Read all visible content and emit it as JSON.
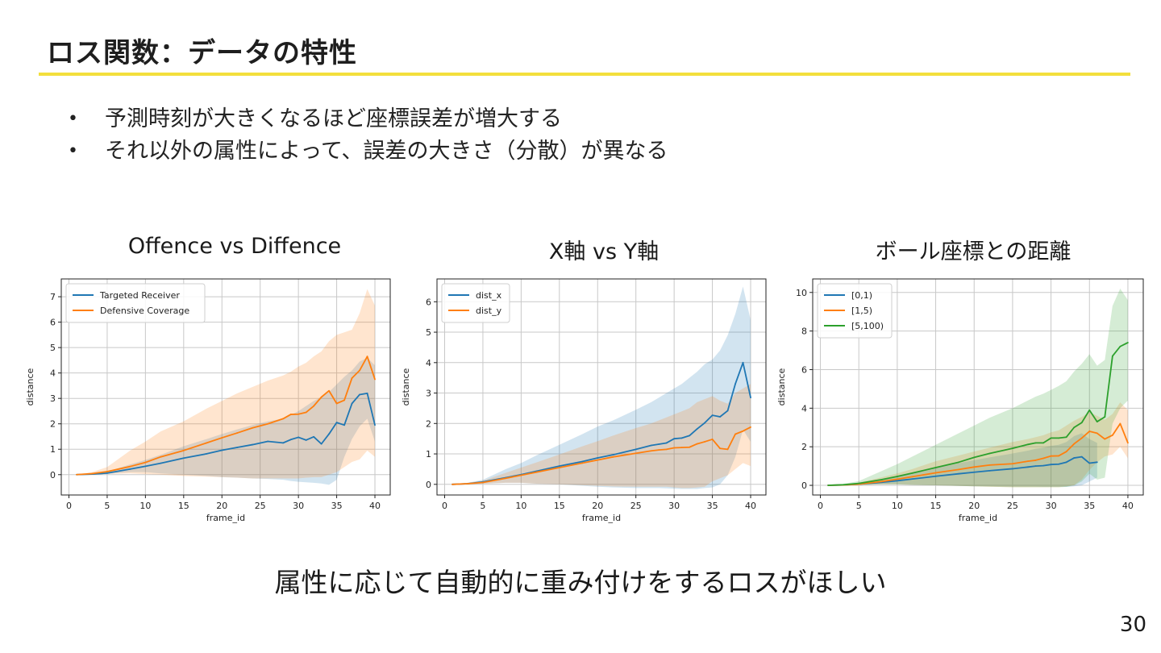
{
  "slide": {
    "title": "ロス関数：データの特性",
    "bullets": [
      "予測時刻が大きくなるほど座標誤差が増大する",
      "それ以外の属性によって、誤差の大きさ（分散）が異なる"
    ],
    "conclusion": "属性に応じて自動的に重み付けをするロスがほしい",
    "page_number": "30"
  },
  "colors": {
    "accent": "#f3df3c",
    "blue": "#1f77b4",
    "orange": "#ff7f0e",
    "green": "#2ca02c"
  },
  "chart_data": [
    {
      "type": "line",
      "title": "Offence vs Diffence",
      "xlabel": "frame_id",
      "ylabel": "distance",
      "xlim": [
        -1,
        42
      ],
      "ylim": [
        -0.8,
        7.7
      ],
      "xticks": [
        0,
        5,
        10,
        15,
        20,
        25,
        30,
        35,
        40
      ],
      "yticks": [
        0,
        1,
        2,
        3,
        4,
        5,
        6,
        7
      ],
      "legend_position": "top-left",
      "x": [
        1,
        3,
        5,
        8,
        10,
        12,
        15,
        18,
        20,
        22,
        24,
        26,
        28,
        29,
        30,
        31,
        32,
        33,
        34,
        35,
        36,
        37,
        38,
        39,
        40
      ],
      "series": [
        {
          "name": "Targeted Receiver",
          "color": "#1f77b4",
          "values": [
            0,
            0.02,
            0.06,
            0.22,
            0.33,
            0.45,
            0.65,
            0.82,
            0.96,
            1.07,
            1.18,
            1.31,
            1.25,
            1.38,
            1.47,
            1.36,
            1.49,
            1.21,
            1.6,
            2.05,
            1.95,
            2.8,
            3.15,
            3.2,
            1.95
          ],
          "lower": [
            0,
            0,
            0.03,
            0.1,
            0.1,
            0.05,
            0,
            -0.05,
            -0.1,
            -0.12,
            -0.15,
            -0.17,
            -0.2,
            -0.25,
            -0.28,
            -0.3,
            -0.32,
            -0.35,
            -0.4,
            -0.2,
            0.7,
            1.4,
            1.9,
            2.2,
            1.3
          ],
          "upper": [
            0,
            0.06,
            0.12,
            0.4,
            0.58,
            0.78,
            1.12,
            1.4,
            1.6,
            1.78,
            1.95,
            2.1,
            2.2,
            2.35,
            2.5,
            2.7,
            2.9,
            3.05,
            3.25,
            3.55,
            3.85,
            4.1,
            4.45,
            4.6,
            4.3
          ]
        },
        {
          "name": "Defensive Coverage",
          "color": "#ff7f0e",
          "values": [
            0,
            0.04,
            0.12,
            0.32,
            0.48,
            0.7,
            0.95,
            1.25,
            1.45,
            1.64,
            1.84,
            2.0,
            2.2,
            2.37,
            2.38,
            2.45,
            2.7,
            3.05,
            3.3,
            2.8,
            2.93,
            3.8,
            4.1,
            4.65,
            3.75
          ],
          "lower": [
            0,
            0,
            0.03,
            0.05,
            0.02,
            0,
            -0.05,
            -0.08,
            -0.1,
            -0.12,
            -0.15,
            -0.15,
            -0.15,
            -0.15,
            -0.15,
            -0.12,
            -0.1,
            -0.1,
            0,
            0.1,
            0.3,
            0.5,
            0.6,
            0.95,
            0.7
          ],
          "upper": [
            0,
            0.1,
            0.3,
            0.95,
            1.3,
            1.7,
            2.1,
            2.6,
            2.9,
            3.2,
            3.45,
            3.7,
            3.9,
            4.05,
            4.25,
            4.4,
            4.65,
            4.85,
            5.25,
            5.5,
            5.6,
            5.7,
            6.35,
            7.3,
            6.65
          ]
        }
      ]
    },
    {
      "type": "line",
      "title": "X軸 vs Y軸",
      "xlabel": "frame_id",
      "ylabel": "distance",
      "xlim": [
        -1,
        42
      ],
      "ylim": [
        -0.35,
        6.75
      ],
      "xticks": [
        0,
        5,
        10,
        15,
        20,
        25,
        30,
        35,
        40
      ],
      "yticks": [
        0,
        1,
        2,
        3,
        4,
        5,
        6
      ],
      "legend_position": "top-left",
      "x": [
        1,
        3,
        5,
        8,
        10,
        12,
        15,
        18,
        20,
        22,
        25,
        27,
        28,
        29,
        30,
        31,
        32,
        33,
        34,
        35,
        36,
        37,
        38,
        39,
        40
      ],
      "series": [
        {
          "name": "dist_x",
          "color": "#1f77b4",
          "values": [
            0,
            0.02,
            0.08,
            0.22,
            0.32,
            0.43,
            0.6,
            0.75,
            0.87,
            0.97,
            1.15,
            1.28,
            1.32,
            1.36,
            1.5,
            1.52,
            1.6,
            1.82,
            2.02,
            2.27,
            2.22,
            2.42,
            3.3,
            4.0,
            2.85
          ],
          "lower": [
            0,
            0,
            0.02,
            0.05,
            0.05,
            0.02,
            0,
            -0.05,
            -0.08,
            -0.1,
            -0.12,
            -0.12,
            -0.12,
            -0.13,
            -0.14,
            -0.15,
            -0.15,
            -0.15,
            -0.12,
            -0.1,
            0,
            0.3,
            0.9,
            1.8,
            1.4
          ],
          "upper": [
            0,
            0.05,
            0.15,
            0.5,
            0.7,
            0.95,
            1.3,
            1.65,
            1.9,
            2.1,
            2.45,
            2.7,
            2.85,
            3.0,
            3.15,
            3.3,
            3.5,
            3.7,
            3.95,
            4.1,
            4.4,
            4.9,
            5.6,
            6.5,
            5.4
          ]
        },
        {
          "name": "dist_y",
          "color": "#ff7f0e",
          "values": [
            0,
            0.02,
            0.06,
            0.2,
            0.3,
            0.4,
            0.55,
            0.7,
            0.8,
            0.9,
            1.02,
            1.1,
            1.13,
            1.15,
            1.2,
            1.21,
            1.22,
            1.33,
            1.4,
            1.48,
            1.18,
            1.15,
            1.65,
            1.75,
            1.88
          ],
          "lower": [
            0,
            0,
            0.02,
            0.05,
            0.05,
            0.02,
            0,
            -0.03,
            -0.05,
            -0.07,
            -0.08,
            -0.08,
            -0.08,
            -0.08,
            -0.1,
            -0.12,
            -0.12,
            -0.1,
            -0.08,
            0.1,
            0.2,
            0.3,
            0.5,
            0.7,
            0.6
          ],
          "upper": [
            0,
            0.05,
            0.12,
            0.38,
            0.55,
            0.72,
            0.98,
            1.25,
            1.42,
            1.6,
            1.85,
            2.0,
            2.1,
            2.2,
            2.3,
            2.4,
            2.5,
            2.7,
            2.8,
            2.9,
            2.75,
            2.65,
            3.0,
            3.15,
            3.3
          ]
        }
      ]
    },
    {
      "type": "line",
      "title": "ボール座標との距離",
      "xlabel": "frame_id",
      "ylabel": "distance",
      "xlim": [
        -1,
        42
      ],
      "ylim": [
        -0.5,
        10.7
      ],
      "xticks": [
        0,
        5,
        10,
        15,
        20,
        25,
        30,
        35,
        40
      ],
      "yticks": [
        0,
        2,
        4,
        6,
        8,
        10
      ],
      "legend_position": "top-left",
      "x": [
        1,
        3,
        5,
        8,
        10,
        12,
        15,
        18,
        20,
        22,
        25,
        27,
        28,
        29,
        30,
        31,
        32,
        33,
        34,
        35,
        36,
        37,
        38,
        39,
        40
      ],
      "series": [
        {
          "name": "[0,1)",
          "color": "#1f77b4",
          "values": [
            0,
            0.02,
            0.06,
            0.16,
            0.24,
            0.33,
            0.47,
            0.6,
            0.68,
            0.76,
            0.86,
            0.95,
            1.0,
            1.02,
            1.08,
            1.1,
            1.2,
            1.42,
            1.48,
            1.15,
            1.2,
            null,
            null,
            null,
            null
          ],
          "lower": [
            0,
            0,
            0.02,
            0.05,
            0.05,
            0.03,
            0,
            -0.03,
            -0.05,
            -0.05,
            -0.07,
            -0.07,
            -0.07,
            -0.08,
            -0.08,
            -0.08,
            -0.08,
            -0.05,
            0,
            0.2,
            0.4,
            null,
            null,
            null,
            null
          ],
          "upper": [
            0,
            0.05,
            0.12,
            0.3,
            0.45,
            0.62,
            0.9,
            1.15,
            1.3,
            1.45,
            1.65,
            1.8,
            1.9,
            1.95,
            2.05,
            2.1,
            2.25,
            2.55,
            2.7,
            2.4,
            2.2,
            null,
            null,
            null,
            null
          ]
        },
        {
          "name": "[1,5)",
          "color": "#ff7f0e",
          "values": [
            0,
            0.02,
            0.06,
            0.2,
            0.32,
            0.45,
            0.65,
            0.82,
            0.95,
            1.05,
            1.12,
            1.25,
            1.3,
            1.4,
            1.52,
            1.53,
            1.75,
            2.15,
            2.45,
            2.8,
            2.7,
            2.4,
            2.6,
            3.2,
            2.2
          ],
          "lower": [
            0,
            0,
            0.02,
            0.05,
            0.05,
            0.03,
            0,
            -0.03,
            -0.05,
            -0.07,
            -0.1,
            -0.1,
            -0.1,
            -0.1,
            -0.1,
            -0.1,
            -0.05,
            0,
            0.3,
            0.8,
            1.2,
            1.5,
            1.6,
            2.0,
            1.4
          ],
          "upper": [
            0,
            0.05,
            0.14,
            0.42,
            0.62,
            0.85,
            1.25,
            1.55,
            1.75,
            1.95,
            2.25,
            2.4,
            2.5,
            2.6,
            2.75,
            2.85,
            3.1,
            3.35,
            3.55,
            3.8,
            3.6,
            3.4,
            3.7,
            4.3,
            3.9
          ]
        },
        {
          "name": "[5,100)",
          "color": "#2ca02c",
          "values": [
            0,
            0.03,
            0.1,
            0.3,
            0.46,
            0.64,
            0.92,
            1.2,
            1.45,
            1.65,
            1.92,
            2.12,
            2.2,
            2.2,
            2.45,
            2.45,
            2.5,
            3.0,
            3.25,
            3.9,
            3.3,
            3.55,
            6.7,
            7.2,
            7.4
          ],
          "lower": [
            0,
            0,
            0.03,
            0.05,
            0.05,
            0.02,
            0,
            -0.03,
            -0.05,
            -0.07,
            -0.1,
            -0.1,
            -0.1,
            -0.1,
            -0.1,
            -0.1,
            -0.08,
            0,
            0.2,
            0.6,
            0.3,
            0.4,
            3.2,
            4.0,
            4.4
          ],
          "upper": [
            0,
            0.08,
            0.22,
            0.75,
            1.1,
            1.5,
            2.1,
            2.7,
            3.1,
            3.5,
            4.0,
            4.4,
            4.6,
            4.75,
            4.95,
            5.15,
            5.4,
            5.9,
            6.3,
            6.8,
            6.2,
            6.5,
            9.3,
            10.2,
            9.6
          ]
        }
      ]
    }
  ]
}
